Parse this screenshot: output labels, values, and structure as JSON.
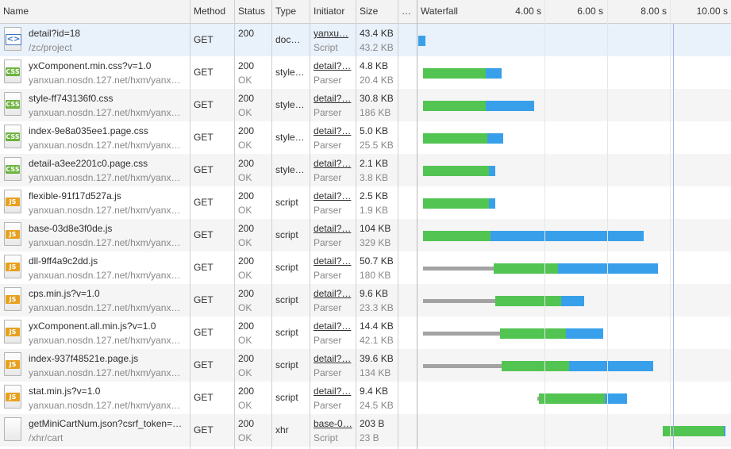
{
  "columns": {
    "name": "Name",
    "method": "Method",
    "status": "Status",
    "type": "Type",
    "initiator": "Initiator",
    "size": "Size",
    "time": "…",
    "waterfall": "Waterfall"
  },
  "timeline": {
    "ticks": [
      "4.00 s",
      "6.00 s",
      "8.00 s",
      "10.00 s"
    ],
    "unit": "s"
  },
  "colors": {
    "waiting": "#a3a3a3",
    "ttfb": "#52c452",
    "download": "#38a0ea",
    "selected_row": "#e9f1fb"
  },
  "requests": [
    {
      "name": "detail?id=18",
      "path": "/zc/project",
      "method": "GET",
      "status": "200",
      "status_text": "",
      "type": "doc…",
      "initiator": "yanxu…",
      "initiator_type": "Script",
      "size": "43.4 KB",
      "resource": "43.2 KB",
      "icon": "document-icon",
      "badge": "<>",
      "timing": {
        "stall": 0,
        "wait": 0.0,
        "ttfb": 0.0,
        "download": 0.23
      }
    },
    {
      "name": "yxComponent.min.css?v=1.0",
      "path": "yanxuan.nosdn.127.net/hxm/yanx…",
      "method": "GET",
      "status": "200",
      "status_text": "OK",
      "type": "style…",
      "initiator": "detail?…",
      "initiator_type": "Parser",
      "size": "4.8 KB",
      "resource": "20.4 KB",
      "icon": "css-file-icon",
      "badge": "CSS",
      "timing": {
        "stall": 0.15,
        "wait": 0.0,
        "ttfb": 2.0,
        "download": 0.5
      }
    },
    {
      "name": "style-ff743136f0.css",
      "path": "yanxuan.nosdn.127.net/hxm/yanx…",
      "method": "GET",
      "status": "200",
      "status_text": "OK",
      "type": "style…",
      "initiator": "detail?…",
      "initiator_type": "Parser",
      "size": "30.8 KB",
      "resource": "186 KB",
      "icon": "css-file-icon",
      "badge": "CSS",
      "timing": {
        "stall": 0.15,
        "wait": 0.0,
        "ttfb": 2.0,
        "download": 1.55
      }
    },
    {
      "name": "index-9e8a035ee1.page.css",
      "path": "yanxuan.nosdn.127.net/hxm/yanx…",
      "method": "GET",
      "status": "200",
      "status_text": "OK",
      "type": "style…",
      "initiator": "detail?…",
      "initiator_type": "Parser",
      "size": "5.0 KB",
      "resource": "25.5 KB",
      "icon": "css-file-icon",
      "badge": "CSS",
      "timing": {
        "stall": 0.15,
        "wait": 0.0,
        "ttfb": 2.05,
        "download": 0.5
      }
    },
    {
      "name": "detail-a3ee2201c0.page.css",
      "path": "yanxuan.nosdn.127.net/hxm/yanx…",
      "method": "GET",
      "status": "200",
      "status_text": "OK",
      "type": "style…",
      "initiator": "detail?…",
      "initiator_type": "Parser",
      "size": "2.1 KB",
      "resource": "3.8 KB",
      "icon": "css-file-icon",
      "badge": "CSS",
      "timing": {
        "stall": 0.15,
        "wait": 0.0,
        "ttfb": 2.1,
        "download": 0.2
      }
    },
    {
      "name": "flexible-91f17d527a.js",
      "path": "yanxuan.nosdn.127.net/hxm/yanx…",
      "method": "GET",
      "status": "200",
      "status_text": "OK",
      "type": "script",
      "initiator": "detail?…",
      "initiator_type": "Parser",
      "size": "2.5 KB",
      "resource": "1.9 KB",
      "icon": "js-file-icon",
      "badge": "JS",
      "timing": {
        "stall": 0.15,
        "wait": 0.0,
        "ttfb": 2.1,
        "download": 0.2
      }
    },
    {
      "name": "base-03d8e3f0de.js",
      "path": "yanxuan.nosdn.127.net/hxm/yanx…",
      "method": "GET",
      "status": "200",
      "status_text": "OK",
      "type": "script",
      "initiator": "detail?…",
      "initiator_type": "Parser",
      "size": "104 KB",
      "resource": "329 KB",
      "icon": "js-file-icon",
      "badge": "JS",
      "timing": {
        "stall": 0.15,
        "wait": 0.0,
        "ttfb": 2.15,
        "download": 4.9
      }
    },
    {
      "name": "dll-9ff4a9c2dd.js",
      "path": "yanxuan.nosdn.127.net/hxm/yanx…",
      "method": "GET",
      "status": "200",
      "status_text": "OK",
      "type": "script",
      "initiator": "detail?…",
      "initiator_type": "Parser",
      "size": "50.7 KB",
      "resource": "180 KB",
      "icon": "js-file-icon",
      "badge": "JS",
      "timing": {
        "stall": 0.15,
        "wait": 2.25,
        "ttfb": 2.05,
        "download": 3.2
      }
    },
    {
      "name": "cps.min.js?v=1.0",
      "path": "yanxuan.nosdn.127.net/hxm/yanx…",
      "method": "GET",
      "status": "200",
      "status_text": "OK",
      "type": "script",
      "initiator": "detail?…",
      "initiator_type": "Parser",
      "size": "9.6 KB",
      "resource": "23.3 KB",
      "icon": "js-file-icon",
      "badge": "JS",
      "timing": {
        "stall": 0.15,
        "wait": 2.3,
        "ttfb": 2.1,
        "download": 0.75
      }
    },
    {
      "name": "yxComponent.all.min.js?v=1.0",
      "path": "yanxuan.nosdn.127.net/hxm/yanx…",
      "method": "GET",
      "status": "200",
      "status_text": "OK",
      "type": "script",
      "initiator": "detail?…",
      "initiator_type": "Parser",
      "size": "14.4 KB",
      "resource": "42.1 KB",
      "icon": "js-file-icon",
      "badge": "JS",
      "timing": {
        "stall": 0.15,
        "wait": 2.45,
        "ttfb": 2.1,
        "download": 1.2
      }
    },
    {
      "name": "index-937f48521e.page.js",
      "path": "yanxuan.nosdn.127.net/hxm/yanx…",
      "method": "GET",
      "status": "200",
      "status_text": "OK",
      "type": "script",
      "initiator": "detail?…",
      "initiator_type": "Parser",
      "size": "39.6 KB",
      "resource": "134 KB",
      "icon": "js-file-icon",
      "badge": "JS",
      "timing": {
        "stall": 0.15,
        "wait": 2.5,
        "ttfb": 2.15,
        "download": 2.7
      }
    },
    {
      "name": "stat.min.js?v=1.0",
      "path": "yanxuan.nosdn.127.net/hxm/yanx…",
      "method": "GET",
      "status": "200",
      "status_text": "OK",
      "type": "script",
      "initiator": "detail?…",
      "initiator_type": "Parser",
      "size": "9.4 KB",
      "resource": "24.5 KB",
      "icon": "js-file-icon",
      "badge": "JS",
      "timing": {
        "stall": 3.8,
        "wait": 0.05,
        "ttfb": 2.1,
        "download": 0.7
      }
    },
    {
      "name": "getMiniCartNum.json?csrf_token=…",
      "path": "/xhr/cart",
      "method": "GET",
      "status": "200",
      "status_text": "OK",
      "type": "xhr",
      "initiator": "base-0…",
      "initiator_type": "Script",
      "size": "203 B",
      "resource": "23 B",
      "icon": "blank-file-icon",
      "badge": "",
      "timing": {
        "stall": 7.8,
        "wait": 0.0,
        "ttfb": 1.95,
        "download": 0.05
      }
    }
  ]
}
